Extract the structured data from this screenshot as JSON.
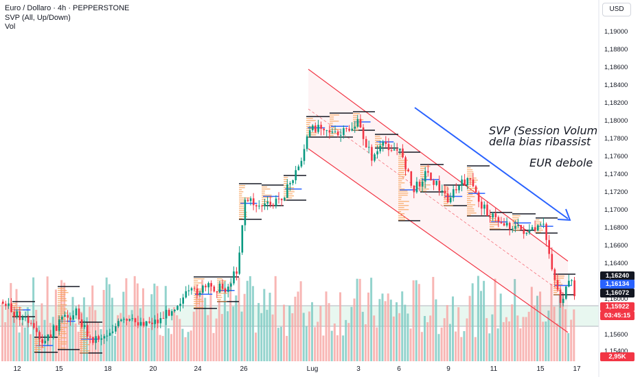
{
  "legend": {
    "symbol_line": "Euro / Dollaro · 4h · PEPPERSTONE",
    "indicator1": "SVP (All, Up/Down)",
    "indicator2": "Vol"
  },
  "currency_button": "USD",
  "price_axis": {
    "ticks": [
      "1,19000",
      "1,18800",
      "1,18600",
      "1,18400",
      "1,18200",
      "1,18000",
      "1,17800",
      "1,17600",
      "1,17400",
      "1,17200",
      "1,17000",
      "1,16800",
      "1,16600",
      "1,16400",
      "1,16000",
      "1,15600",
      "1,15400"
    ]
  },
  "price_tags": [
    {
      "text": "1,16240",
      "color": "#131722"
    },
    {
      "text": "1,16134",
      "color": "#2962ff"
    },
    {
      "text": "1,16072",
      "color": "#131722"
    },
    {
      "text": "1,15922",
      "color": "#f23645"
    },
    {
      "text": "03:45:15",
      "color": "#f23645"
    },
    {
      "text": "2,95K",
      "color": "#f23645"
    }
  ],
  "time_axis": {
    "labels": [
      "12",
      "15",
      "18",
      "20",
      "24",
      "26",
      "Lug",
      "3",
      "6",
      "9",
      "11",
      "15",
      "17"
    ]
  },
  "annotations": {
    "line1": "SVP (Session Volum",
    "line2": "della bias ribassist",
    "line3": "EUR debole"
  },
  "colors": {
    "bull": "#089981",
    "bear": "#f23645",
    "channel": "#f23645",
    "arrow": "#2962ff",
    "volume_bull": "#80cbc4",
    "volume_bear": "#f7a9a7"
  }
}
